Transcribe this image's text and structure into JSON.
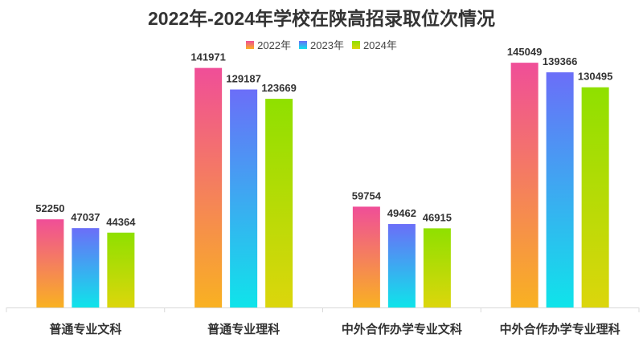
{
  "chart_data": {
    "type": "bar",
    "title": "2022年-2024年学校在陕高招录取位次情况",
    "categories": [
      "普通专业文科",
      "普通专业理科",
      "中外合作办学专业文科",
      "中外合作办学专业理科"
    ],
    "series": [
      {
        "name": "2022年",
        "values": [
          52250,
          141971,
          59754,
          145049
        ],
        "gradient": [
          "#f04e98",
          "#f9b122"
        ]
      },
      {
        "name": "2023年",
        "values": [
          47037,
          129187,
          49462,
          139366
        ],
        "gradient": [
          "#6b6ef8",
          "#0fe4ea"
        ]
      },
      {
        "name": "2024年",
        "values": [
          44364,
          123669,
          46915,
          130495
        ],
        "gradient": [
          "#8fe000",
          "#dcd60c"
        ]
      }
    ],
    "xlabel": "",
    "ylabel": "",
    "ylim": [
      0,
      147500
    ],
    "legend_position": "top-center",
    "grid": false
  }
}
